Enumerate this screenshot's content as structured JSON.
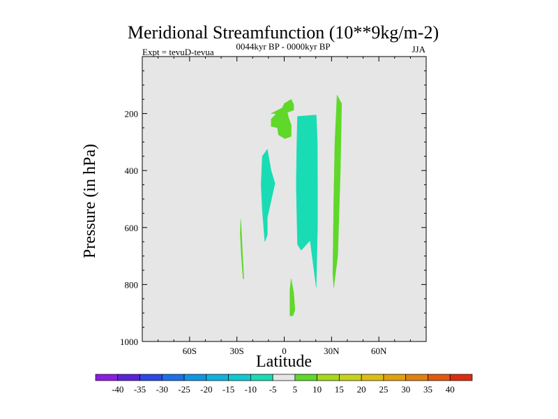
{
  "chart_data": {
    "type": "contour",
    "title": "Meridional Streamfunction (10**9kg/m-2)",
    "subtitle_left": "Expt = tevuD-tevua",
    "subtitle_center": "0044kyr BP - 0000kyr BP",
    "subtitle_right": "JJA",
    "xlabel": "Latitude",
    "ylabel": "Pressure (in hPa)",
    "xlim": [
      -90,
      90
    ],
    "ylim": [
      0,
      1000
    ],
    "y_inverted": true,
    "x_ticks": [
      {
        "value": -60,
        "label": "60S"
      },
      {
        "value": -30,
        "label": "30S"
      },
      {
        "value": 0,
        "label": "0"
      },
      {
        "value": 30,
        "label": "30N"
      },
      {
        "value": 60,
        "label": "60N"
      }
    ],
    "y_ticks": [
      {
        "value": 200,
        "label": "200"
      },
      {
        "value": 400,
        "label": "400"
      },
      {
        "value": 600,
        "label": "600"
      },
      {
        "value": 800,
        "label": "800"
      },
      {
        "value": 1000,
        "label": "1000"
      }
    ],
    "colorbar": {
      "colors": [
        "#8a1ee0",
        "#5a23d8",
        "#2d48e6",
        "#1a70e6",
        "#0f96e3",
        "#0fb2df",
        "#0fc9d2",
        "#19dcb4",
        "#e6e6e6",
        "#5fd82a",
        "#a6d91a",
        "#c8d21a",
        "#dcbe12",
        "#e0a00f",
        "#e0800f",
        "#e05a0f",
        "#dc2d0f"
      ],
      "labels": [
        "-40",
        "-35",
        "-30",
        "-25",
        "-20",
        "-15",
        "-10",
        "-5",
        "5",
        "10",
        "15",
        "20",
        "25",
        "30",
        "35",
        "40"
      ]
    },
    "regions": [
      {
        "name": "positive-cell-upper-tropics",
        "value": 5,
        "color": "#5fd82a",
        "polygon": [
          [
            -8.3,
            245
          ],
          [
            -8.3,
            220
          ],
          [
            -5.1,
            200
          ],
          [
            -0.4,
            190
          ],
          [
            0.4,
            175
          ],
          [
            6,
            168
          ],
          [
            6,
            188
          ],
          [
            2,
            196
          ],
          [
            2.8,
            215
          ],
          [
            4.4,
            240
          ],
          [
            4.4,
            280
          ],
          [
            0.4,
            288
          ],
          [
            -3.6,
            275
          ],
          [
            -4.3,
            250
          ]
        ]
      },
      {
        "name": "positive-cell-upper-tropics-arm",
        "value": 5,
        "color": "#5fd82a",
        "polygon": [
          [
            -4.3,
            250
          ],
          [
            -3.6,
            275
          ],
          [
            0.4,
            288
          ],
          [
            4.4,
            280
          ],
          [
            4.4,
            240
          ],
          [
            2.8,
            215
          ],
          [
            0.4,
            230
          ],
          [
            -2.8,
            255
          ]
        ]
      },
      {
        "name": "positive-cell-upper-tropics-top",
        "value": 5,
        "color": "#5fd82a",
        "polygon": [
          [
            -8.3,
            200
          ],
          [
            -1.2,
            180
          ],
          [
            0,
            165
          ],
          [
            4.4,
            150
          ],
          [
            6,
            168
          ],
          [
            0.4,
            175
          ],
          [
            -0.4,
            190
          ],
          [
            -5.1,
            200
          ]
        ]
      },
      {
        "name": "negative-cell-tropics-north",
        "value": -5,
        "color": "#19dcb4",
        "polygon": [
          [
            8.4,
            210
          ],
          [
            20.3,
            205
          ],
          [
            21,
            300
          ],
          [
            21.1,
            450
          ],
          [
            21.1,
            600
          ],
          [
            20.3,
            810
          ],
          [
            16.4,
            645
          ],
          [
            10.8,
            680
          ],
          [
            8.4,
            660
          ],
          [
            7.6,
            450
          ],
          [
            8,
            300
          ]
        ]
      },
      {
        "name": "negative-cell-tropics-south",
        "value": -5,
        "color": "#19dcb4",
        "polygon": [
          [
            -13.9,
            350
          ],
          [
            -10.7,
            325
          ],
          [
            -8.3,
            400
          ],
          [
            -5.9,
            445
          ],
          [
            -10.7,
            565
          ],
          [
            -10.7,
            625
          ],
          [
            -12.3,
            650
          ],
          [
            -13.9,
            540
          ],
          [
            -14.7,
            450
          ]
        ]
      },
      {
        "name": "positive-cell-northern-subtropics",
        "value": 5,
        "color": "#5fd82a",
        "polygon": [
          [
            33.5,
            135
          ],
          [
            36.4,
            165
          ],
          [
            35.6,
            400
          ],
          [
            33.9,
            700
          ],
          [
            31.4,
            810
          ],
          [
            30.8,
            760
          ],
          [
            31.4,
            500
          ],
          [
            32.1,
            300
          ]
        ]
      },
      {
        "name": "positive-cell-southern-thin",
        "value": 5,
        "color": "#5fd82a",
        "polygon": [
          [
            -27.5,
            570
          ],
          [
            -26.7,
            660
          ],
          [
            -25.6,
            780
          ],
          [
            -26.1,
            780
          ],
          [
            -27.2,
            700
          ],
          [
            -27.9,
            620
          ]
        ]
      },
      {
        "name": "positive-cell-lower-equator",
        "value": 5,
        "color": "#5fd82a",
        "polygon": [
          [
            4.4,
            780
          ],
          [
            6,
            830
          ],
          [
            6.8,
            890
          ],
          [
            5.5,
            910
          ],
          [
            3.6,
            910
          ],
          [
            3.6,
            820
          ]
        ]
      }
    ]
  }
}
